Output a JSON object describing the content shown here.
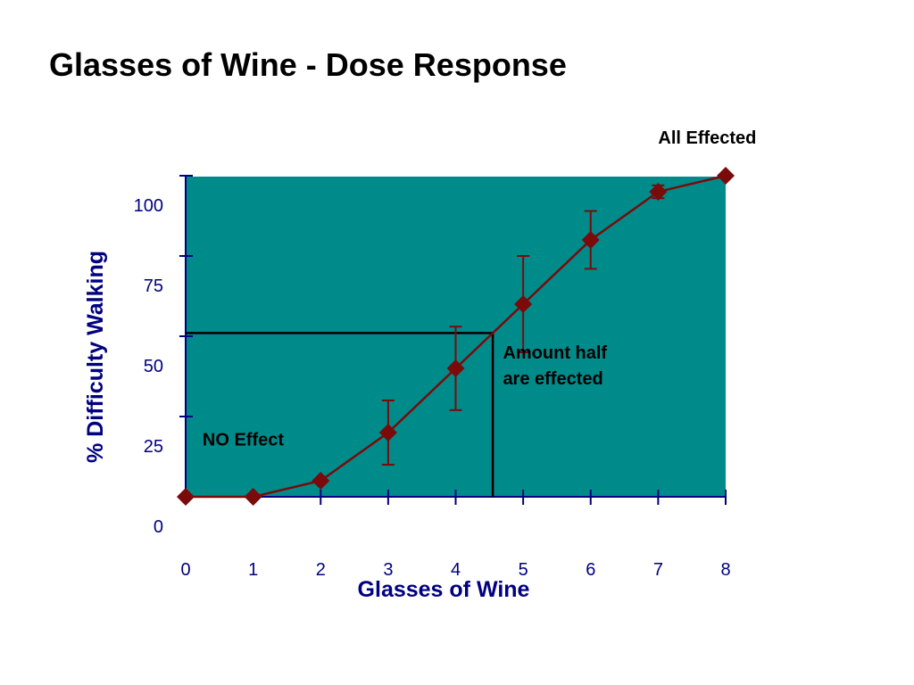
{
  "title": "Glasses of Wine - Dose Response",
  "colors": {
    "plot_background": "#008b8b",
    "axis": "#000080",
    "series": "#7b0a0a",
    "reference_lines": "#000000"
  },
  "chart_data": {
    "type": "line",
    "title": "",
    "xlabel": "Glasses of Wine",
    "ylabel": "% Difficulty Walking",
    "x_ticks": [
      0,
      1,
      2,
      3,
      4,
      5,
      6,
      7,
      8
    ],
    "y_ticks": [
      0,
      25,
      50,
      75,
      100
    ],
    "xlim": [
      0,
      8
    ],
    "ylim": [
      0,
      100
    ],
    "grid": false,
    "legend": "none",
    "series": [
      {
        "x": [
          0,
          1,
          2,
          3,
          4,
          5,
          6,
          7,
          8
        ],
        "y": [
          0,
          0,
          5,
          20,
          40,
          60,
          80,
          95,
          100
        ],
        "error_low": [
          null,
          null,
          null,
          10,
          27,
          45,
          71,
          93,
          null
        ],
        "error_high": [
          null,
          null,
          null,
          30,
          53,
          75,
          89,
          97,
          null
        ],
        "marker": "diamond"
      }
    ],
    "reference_lines": {
      "horizontal_y": 51,
      "vertical_x": 4.55
    },
    "annotations": [
      {
        "text": "All Effected",
        "x": 7,
        "y": 110
      },
      {
        "lines": [
          "Amount half",
          "are effected"
        ],
        "x": 4.7,
        "y": 43
      },
      {
        "text": "NO Effect",
        "x": 0.25,
        "y": 16
      }
    ]
  }
}
